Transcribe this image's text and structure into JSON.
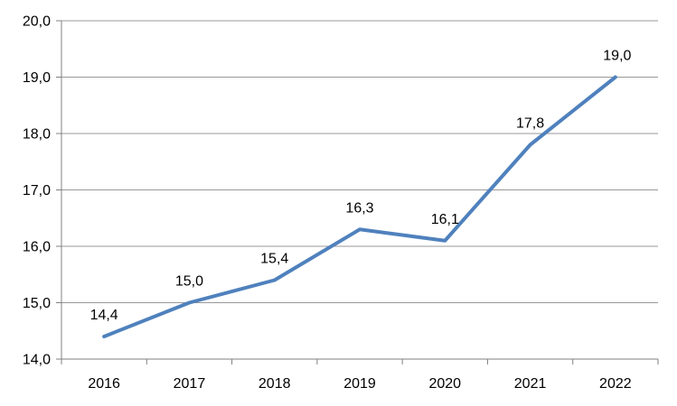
{
  "chart_data": {
    "type": "line",
    "categories": [
      "2016",
      "2017",
      "2018",
      "2019",
      "2020",
      "2021",
      "2022"
    ],
    "series": [
      {
        "name": "series-1",
        "values": [
          14.4,
          15.0,
          15.4,
          16.3,
          16.1,
          17.8,
          19.0
        ],
        "value_labels": [
          "14,4",
          "15,0",
          "15,4",
          "16,3",
          "16,1",
          "17,8",
          "19,0"
        ]
      }
    ],
    "title": "",
    "xlabel": "",
    "ylabel": "",
    "ylim": [
      14,
      20
    ],
    "y_ticks": [
      14,
      15,
      16,
      17,
      18,
      19,
      20
    ],
    "y_tick_labels": [
      "14,0",
      "15,0",
      "16,0",
      "17,0",
      "18,0",
      "19,0",
      "20,0"
    ],
    "grid": true,
    "legend_position": "none",
    "decimal_separator": ",",
    "colors": {
      "line": "#4F81BD",
      "axis": "#808080",
      "grid": "#989898",
      "text": "#000000",
      "background": "#FFFFFF"
    }
  }
}
